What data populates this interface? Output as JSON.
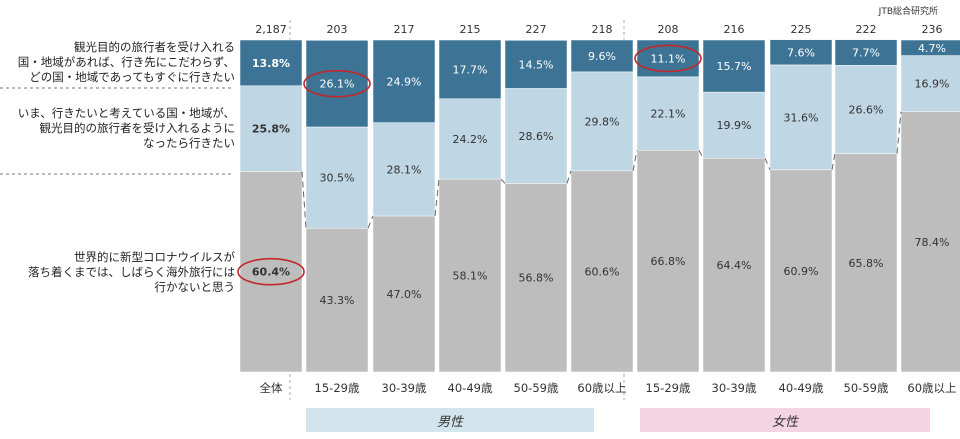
{
  "source": "JTB総合研究所",
  "legend_labels": [
    "観光目的の旅行者を受け入れる\n国・地域があれば、行き先にこだわらず、\nどの国・地域であってもすぐに行きたい",
    "いま、行きたいと考えている国・地域が、\n観光目的の旅行者を受け入れるように\nなったら行きたい",
    "世界的に新型コロナウイルスが\n落ち着くまでは、しばらく海外旅行には\n行かないと思う"
  ],
  "groups": [
    {
      "label": "男性",
      "color": "#d3e5ec"
    },
    {
      "label": "女性",
      "color": "#f4d3e2"
    }
  ],
  "colors": {
    "top": "#3d7496",
    "mid": "#bfd6e4",
    "bottom": "#bdbdbd",
    "highlight": "#c0282a"
  },
  "chart_data": {
    "type": "bar",
    "stacked": true,
    "categories": [
      "全体",
      "15-29歳",
      "30-39歳",
      "40-49歳",
      "50-59歳",
      "60歳以上",
      "15-29歳",
      "30-39歳",
      "40-49歳",
      "50-59歳",
      "60歳以上"
    ],
    "counts": [
      "2,187",
      "203",
      "217",
      "215",
      "227",
      "218",
      "208",
      "216",
      "225",
      "222",
      "236"
    ],
    "series": [
      {
        "values": [
          60.4,
          43.3,
          47.0,
          58.1,
          56.8,
          60.6,
          66.8,
          64.4,
          60.9,
          65.8,
          78.4
        ],
        "labels": [
          "60.4%",
          "43.3%",
          "47.0%",
          "58.1%",
          "56.8%",
          "60.6%",
          "66.8%",
          "64.4%",
          "60.9%",
          "65.8%",
          "78.4%"
        ]
      },
      {
        "values": [
          25.8,
          30.5,
          28.1,
          24.2,
          28.6,
          29.8,
          22.1,
          19.9,
          31.6,
          26.6,
          16.9
        ],
        "labels": [
          "25.8%",
          "30.5%",
          "28.1%",
          "24.2%",
          "28.6%",
          "29.8%",
          "22.1%",
          "19.9%",
          "31.6%",
          "26.6%",
          "16.9%"
        ]
      },
      {
        "values": [
          13.8,
          26.1,
          24.9,
          17.7,
          14.5,
          9.6,
          11.1,
          15.7,
          7.6,
          7.7,
          4.7
        ],
        "labels": [
          "13.8%",
          "26.1%",
          "24.9%",
          "17.7%",
          "14.5%",
          "9.6%",
          "11.1%",
          "15.7%",
          "7.6%",
          "7.7%",
          "4.7%"
        ]
      }
    ],
    "highlighted": [
      {
        "series": 2,
        "index": 1
      },
      {
        "series": 2,
        "index": 6
      },
      {
        "series": 0,
        "index": 0
      }
    ],
    "ylim": [
      0,
      100
    ]
  }
}
